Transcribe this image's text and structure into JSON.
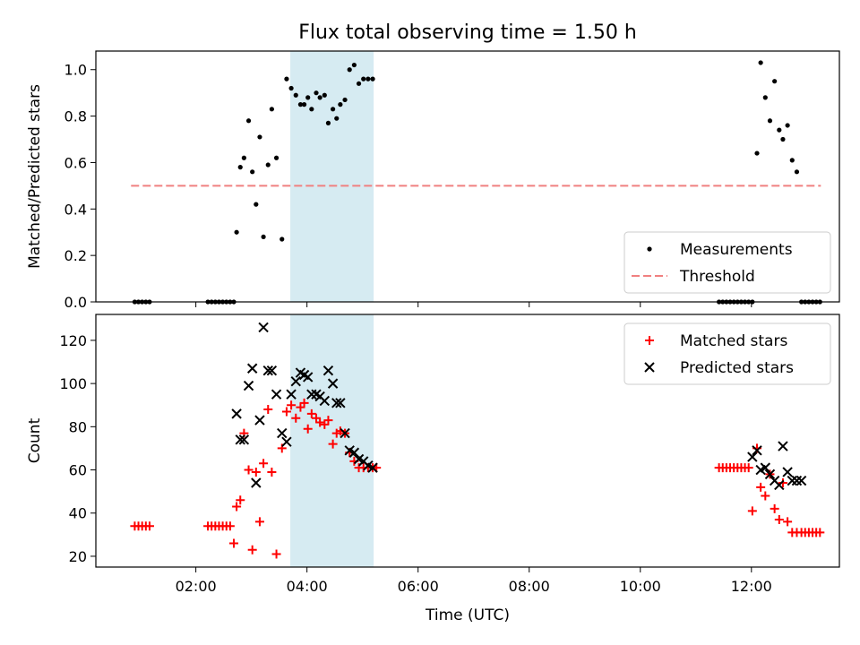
{
  "title": "Flux total observing time = 1.50 h",
  "xlabel": "Time (UTC)",
  "x_ticks": [
    "02:00",
    "04:00",
    "06:00",
    "08:00",
    "10:00",
    "12:00"
  ],
  "shaded_interval": {
    "x": [
      "03:42",
      "05:12"
    ],
    "color": "#add8e6"
  },
  "chart_data": [
    {
      "type": "scatter",
      "ylabel": "Matched/Predicted stars",
      "ylim": [
        0.0,
        1.08
      ],
      "yticks": [
        "0.0",
        "0.2",
        "0.4",
        "0.6",
        "0.8",
        "1.0"
      ],
      "legend_position": "lower-right",
      "series": [
        {
          "name": "Measurements",
          "marker": "dot",
          "color": "#000000",
          "x": [
            "00:54",
            "00:58",
            "01:02",
            "01:06",
            "01:10",
            "02:13",
            "02:17",
            "02:21",
            "02:25",
            "02:29",
            "02:33",
            "02:37",
            "02:41",
            "02:44",
            "02:48",
            "02:52",
            "02:57",
            "03:01",
            "03:05",
            "03:09",
            "03:13",
            "03:18",
            "03:22",
            "03:27",
            "03:33",
            "03:38",
            "03:43",
            "03:48",
            "03:53",
            "03:57",
            "04:01",
            "04:05",
            "04:10",
            "04:14",
            "04:19",
            "04:23",
            "04:28",
            "04:32",
            "04:36",
            "04:41",
            "04:46",
            "04:51",
            "04:56",
            "05:01",
            "05:06",
            "05:11",
            "11:25",
            "11:29",
            "11:33",
            "11:37",
            "11:41",
            "11:45",
            "11:49",
            "11:53",
            "11:57",
            "12:01",
            "12:06",
            "12:10",
            "12:15",
            "12:20",
            "12:25",
            "12:30",
            "12:34",
            "12:39",
            "12:44",
            "12:49",
            "12:54",
            "12:58",
            "13:02",
            "13:06",
            "13:10",
            "13:14"
          ],
          "y": [
            0.0,
            0.0,
            0.0,
            0.0,
            0.0,
            0.0,
            0.0,
            0.0,
            0.0,
            0.0,
            0.0,
            0.0,
            0.0,
            0.3,
            0.58,
            0.62,
            0.78,
            0.56,
            0.42,
            0.71,
            0.28,
            0.59,
            0.83,
            0.62,
            0.27,
            0.96,
            0.92,
            0.89,
            0.85,
            0.85,
            0.88,
            0.83,
            0.9,
            0.88,
            0.89,
            0.77,
            0.83,
            0.79,
            0.85,
            0.87,
            1.0,
            1.02,
            0.94,
            0.96,
            0.96,
            0.96,
            0.0,
            0.0,
            0.0,
            0.0,
            0.0,
            0.0,
            0.0,
            0.0,
            0.0,
            0.0,
            0.64,
            1.03,
            0.88,
            0.78,
            0.95,
            0.74,
            0.7,
            0.76,
            0.61,
            0.56,
            0.0,
            0.0,
            0.0,
            0.0,
            0.0,
            0.0
          ]
        },
        {
          "name": "Threshold",
          "marker": "dashed-line",
          "color": "#f08080",
          "x": [
            "00:50",
            "13:15"
          ],
          "y": [
            0.5,
            0.5
          ]
        }
      ]
    },
    {
      "type": "scatter",
      "ylabel": "Count",
      "ylim": [
        15,
        132
      ],
      "yticks": [
        "20",
        "40",
        "60",
        "80",
        "100",
        "120"
      ],
      "legend_position": "upper-right",
      "series": [
        {
          "name": "Matched stars",
          "marker": "plus",
          "color": "#ff0000",
          "x": [
            "00:54",
            "00:58",
            "01:02",
            "01:06",
            "01:10",
            "02:13",
            "02:17",
            "02:21",
            "02:25",
            "02:29",
            "02:33",
            "02:37",
            "02:41",
            "02:44",
            "02:48",
            "02:52",
            "02:57",
            "03:01",
            "03:05",
            "03:09",
            "03:13",
            "03:18",
            "03:22",
            "03:27",
            "03:33",
            "03:38",
            "03:43",
            "03:48",
            "03:53",
            "03:57",
            "04:01",
            "04:05",
            "04:10",
            "04:14",
            "04:19",
            "04:23",
            "04:28",
            "04:32",
            "04:36",
            "04:41",
            "04:46",
            "04:51",
            "04:56",
            "05:01",
            "05:06",
            "05:11",
            "05:15",
            "11:25",
            "11:29",
            "11:33",
            "11:37",
            "11:41",
            "11:45",
            "11:49",
            "11:53",
            "11:57",
            "12:01",
            "12:06",
            "12:10",
            "12:15",
            "12:20",
            "12:25",
            "12:30",
            "12:34",
            "12:39",
            "12:44",
            "12:49",
            "12:54",
            "12:58",
            "13:02",
            "13:06",
            "13:10",
            "13:14"
          ],
          "y": [
            34,
            34,
            34,
            34,
            34,
            34,
            34,
            34,
            34,
            34,
            34,
            34,
            26,
            43,
            46,
            77,
            60,
            23,
            59,
            36,
            63,
            88,
            59,
            21,
            70,
            87,
            90,
            84,
            89,
            91,
            79,
            86,
            84,
            82,
            81,
            83,
            72,
            77,
            78,
            77,
            68,
            64,
            61,
            61,
            61,
            61,
            61,
            61,
            61,
            61,
            61,
            61,
            61,
            61,
            61,
            61,
            41,
            70,
            52,
            48,
            58,
            42,
            37,
            54,
            36,
            31,
            31,
            31,
            31,
            31,
            31,
            31,
            31
          ]
        },
        {
          "name": "Predicted stars",
          "marker": "x",
          "color": "#000000",
          "x": [
            "02:44",
            "02:48",
            "02:52",
            "02:57",
            "03:01",
            "03:05",
            "03:09",
            "03:13",
            "03:18",
            "03:22",
            "03:27",
            "03:33",
            "03:38",
            "03:43",
            "03:48",
            "03:53",
            "03:57",
            "04:01",
            "04:05",
            "04:10",
            "04:14",
            "04:19",
            "04:23",
            "04:28",
            "04:32",
            "04:36",
            "04:41",
            "04:46",
            "04:51",
            "04:56",
            "05:01",
            "05:06",
            "05:11",
            "12:01",
            "12:06",
            "12:10",
            "12:15",
            "12:20",
            "12:25",
            "12:30",
            "12:34",
            "12:39",
            "12:44",
            "12:49",
            "12:54"
          ],
          "y": [
            86,
            74,
            74,
            99,
            107,
            54,
            83,
            126,
            106,
            106,
            95,
            77,
            73,
            95,
            101,
            105,
            104,
            103,
            95,
            95,
            94,
            92,
            106,
            100,
            91,
            91,
            77,
            69,
            68,
            65,
            64,
            62,
            61,
            66,
            69,
            60,
            61,
            58,
            55,
            53,
            71,
            59,
            55,
            55,
            55
          ]
        }
      ]
    }
  ]
}
